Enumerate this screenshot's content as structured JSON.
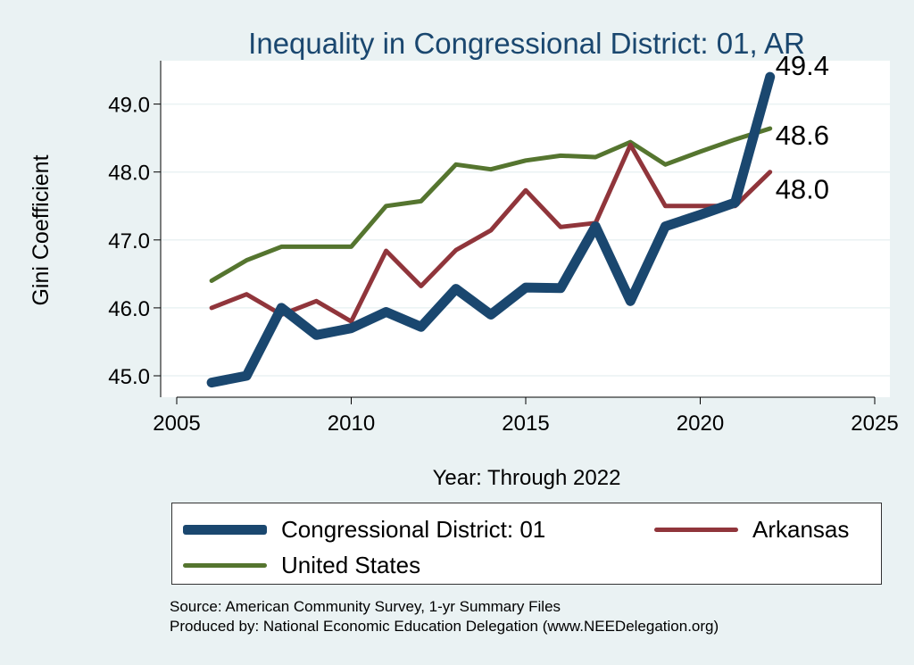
{
  "chart_data": {
    "type": "line",
    "title": "Inequality in Congressional District:  01, AR",
    "xlabel": "Year: Through 2022",
    "ylabel": "Gini Coefficient",
    "xlim": [
      2005,
      2025
    ],
    "ylim": [
      44.7,
      49.5
    ],
    "x_ticks": [
      2005,
      2010,
      2015,
      2020,
      2025
    ],
    "x_tick_labels": [
      "2005",
      "2010",
      "2015",
      "2020",
      "2025"
    ],
    "y_ticks": [
      45,
      46,
      47,
      48,
      49
    ],
    "y_tick_labels": [
      "45.0",
      "46.0",
      "47.0",
      "48.0",
      "49.0"
    ],
    "grid": true,
    "legend_position": "bottom",
    "x": [
      2006,
      2007,
      2008,
      2009,
      2010,
      2011,
      2012,
      2013,
      2014,
      2015,
      2016,
      2017,
      2018,
      2019,
      2020,
      2021,
      2022
    ],
    "series": [
      {
        "name": "Congressional District:  01",
        "color": "#1a476f",
        "values": [
          44.9,
          45.0,
          46.0,
          45.6,
          45.7,
          45.94,
          45.72,
          46.28,
          45.9,
          46.3,
          46.29,
          47.2,
          46.1,
          47.2,
          47.37,
          47.55,
          49.4
        ],
        "end_label": "49.4"
      },
      {
        "name": "Arkansas",
        "color": "#90353b",
        "values": [
          46.0,
          46.2,
          45.9,
          46.1,
          45.8,
          46.84,
          46.32,
          46.85,
          47.14,
          47.73,
          47.19,
          47.25,
          48.4,
          47.5,
          47.5,
          47.5,
          48.0
        ],
        "end_label": "48.0"
      },
      {
        "name": "United States",
        "color": "#55752f",
        "values": [
          46.4,
          46.7,
          46.9,
          46.9,
          46.9,
          47.5,
          47.57,
          48.11,
          48.04,
          48.17,
          48.24,
          48.22,
          48.44,
          48.11,
          48.3,
          48.48,
          48.64
        ],
        "end_label": "48.6"
      }
    ]
  },
  "source_line": "Source: American Community Survey, 1-yr Summary Files",
  "produced_line": "Produced by: National Economic Education Delegation (www.NEEDelegation.org)"
}
